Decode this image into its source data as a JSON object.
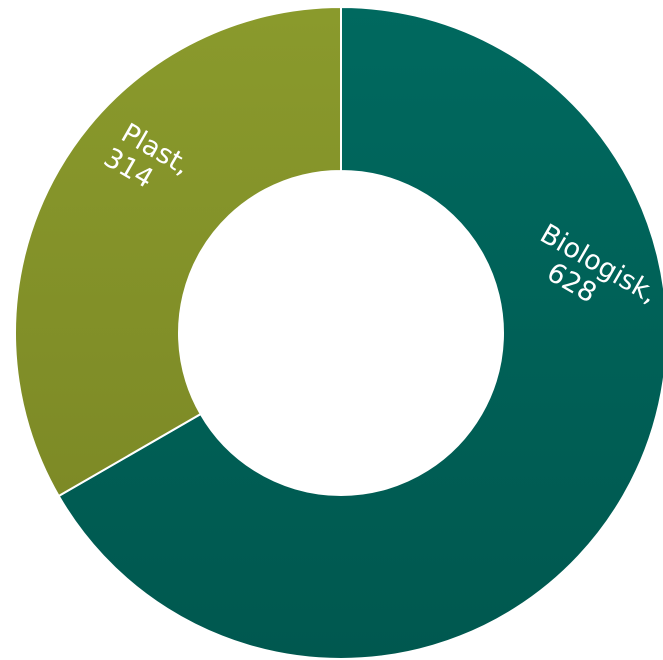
{
  "chart_data": {
    "type": "pie",
    "style": "donut",
    "title": "",
    "categories": [
      "Biologisk",
      "Plast"
    ],
    "values": [
      628,
      314
    ],
    "colors": [
      "#00695f",
      "#8a9a2c"
    ],
    "colors_dark": [
      "#00584f",
      "#7d8a26"
    ],
    "labels": [
      {
        "line1": "Biologisk,",
        "line2": "628"
      },
      {
        "line1": "Plast,",
        "line2": "314"
      }
    ],
    "legend": "none"
  }
}
